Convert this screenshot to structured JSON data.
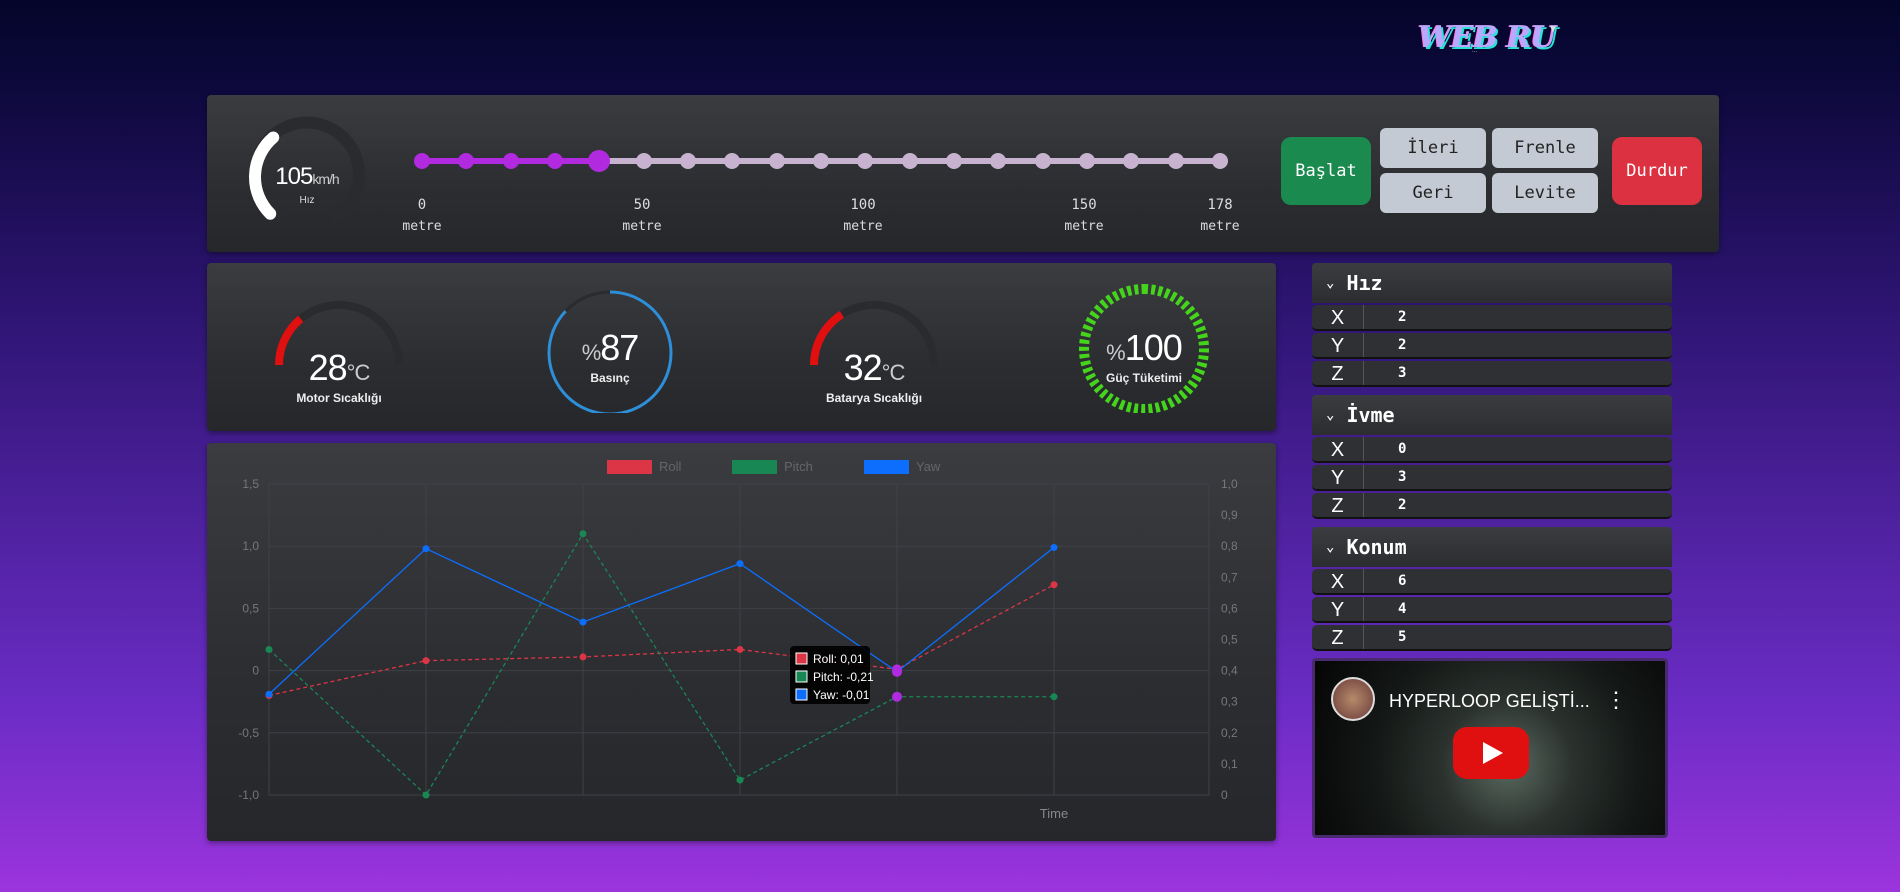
{
  "logo": {
    "text": "WEB RU",
    "sub": "..."
  },
  "speed": {
    "value": "105",
    "unit": "km/h",
    "label": "Hız",
    "fraction": 0.35
  },
  "track": {
    "current_index": 4,
    "dot_count": 19,
    "ticks": [
      {
        "value": "0",
        "unit": "metre"
      },
      {
        "value": "50",
        "unit": "metre"
      },
      {
        "value": "100",
        "unit": "metre"
      },
      {
        "value": "150",
        "unit": "metre"
      },
      {
        "value": "178",
        "unit": "metre"
      }
    ]
  },
  "controls": {
    "start": "Başlat",
    "forward": "İleri",
    "brake": "Frenle",
    "back": "Geri",
    "levitate": "Levite",
    "stop": "Durdur"
  },
  "gauges": {
    "motor": {
      "value": "28",
      "unit": "°C",
      "label": "Motor Sıcaklığı",
      "fraction": 0.28
    },
    "pressure": {
      "prefix": "%",
      "value": "87",
      "label": "Basınç",
      "fraction": 0.87
    },
    "battery": {
      "value": "32",
      "unit": "°C",
      "label": "Batarya Sıcaklığı",
      "fraction": 0.32
    },
    "power": {
      "prefix": "%",
      "value": "100",
      "label": "Güç Tüketimi",
      "fraction": 1.0
    }
  },
  "side": {
    "speed": {
      "title": "Hız",
      "rows": [
        {
          "axis": "X",
          "value": "2"
        },
        {
          "axis": "Y",
          "value": "2"
        },
        {
          "axis": "Z",
          "value": "3"
        }
      ]
    },
    "accel": {
      "title": "İvme",
      "rows": [
        {
          "axis": "X",
          "value": "0"
        },
        {
          "axis": "Y",
          "value": "3"
        },
        {
          "axis": "Z",
          "value": "2"
        }
      ]
    },
    "position": {
      "title": "Konum",
      "rows": [
        {
          "axis": "X",
          "value": "6"
        },
        {
          "axis": "Y",
          "value": "4"
        },
        {
          "axis": "Z",
          "value": "5"
        }
      ]
    }
  },
  "video": {
    "title": "HYPERLOOP GELİŞTİ..."
  },
  "chart_data": {
    "type": "line",
    "xlabel": "Time",
    "y_left": {
      "ticks": [
        "1,5",
        "1,0",
        "0,5",
        "0",
        "-0,5",
        "-1,0"
      ],
      "ylim": [
        -1.0,
        1.5
      ]
    },
    "y_right": {
      "ticks": [
        "1,0",
        "0,9",
        "0,8",
        "0,7",
        "0,6",
        "0,5",
        "0,4",
        "0,3",
        "0,2",
        "0,1",
        "0"
      ],
      "ylim": [
        0,
        1.0
      ]
    },
    "x": [
      0,
      1,
      2,
      3,
      4,
      5
    ],
    "series": [
      {
        "name": "Roll",
        "color": "#dc3545",
        "dashed": true,
        "values": [
          -0.2,
          0.08,
          0.11,
          0.17,
          0.01,
          0.69
        ]
      },
      {
        "name": "Pitch",
        "color": "#198754",
        "dashed": true,
        "values": [
          0.17,
          -1.0,
          1.1,
          -0.88,
          -0.21,
          -0.21
        ]
      },
      {
        "name": "Yaw",
        "color": "#0d6efd",
        "dashed": false,
        "values": [
          -0.19,
          0.98,
          0.39,
          0.86,
          -0.01,
          0.99
        ]
      }
    ],
    "tooltip": {
      "lines": [
        "Roll: 0,01",
        "Pitch: -0,21",
        "Yaw: -0,01"
      ]
    },
    "grid": true,
    "legend": "top-center"
  }
}
